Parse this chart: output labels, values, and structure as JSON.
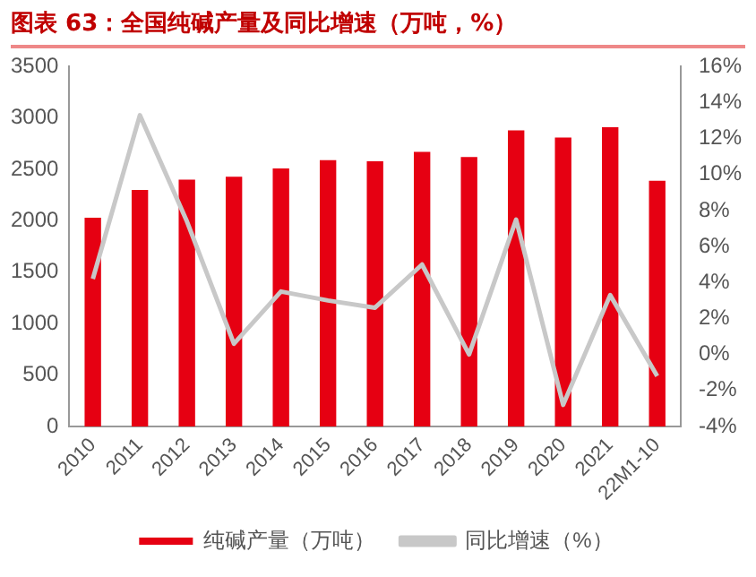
{
  "chart_data": {
    "type": "bar",
    "title": "图表 63：全国纯碱产量及同比增速（万吨，%）",
    "categories": [
      "2010",
      "2011",
      "2012",
      "2013",
      "2014",
      "2015",
      "2016",
      "2017",
      "2018",
      "2019",
      "2020",
      "2021",
      "22M1-10"
    ],
    "series": [
      {
        "name": "纯碱产量（万吨）",
        "color": "#e60012",
        "values": [
          2030,
          2300,
          2400,
          2430,
          2510,
          2590,
          2580,
          2670,
          2620,
          2880,
          2810,
          2910,
          2390
        ]
      },
      {
        "name": "同比增速（%）",
        "type": "line",
        "axis": "y2",
        "color": "#c8c8c8",
        "values": [
          4.2,
          13.3,
          7.4,
          0.6,
          3.5,
          3.0,
          2.6,
          5.0,
          0.0,
          7.5,
          -2.8,
          3.3,
          -1.2
        ]
      }
    ],
    "ylim": [
      0,
      3500
    ],
    "yticks": [
      0,
      500,
      1000,
      1500,
      2000,
      2500,
      3000,
      3500
    ],
    "y2lim": [
      -4,
      16
    ],
    "y2ticks": [
      {
        "value": -4,
        "label": "-4%"
      },
      {
        "value": -2,
        "label": "-2%"
      },
      {
        "value": 0,
        "label": "0%"
      },
      {
        "value": 2,
        "label": "2%"
      },
      {
        "value": 4,
        "label": "4%"
      },
      {
        "value": 6,
        "label": "6%"
      },
      {
        "value": 8,
        "label": "8%"
      },
      {
        "value": 10,
        "label": "10%"
      },
      {
        "value": 12,
        "label": "12%"
      },
      {
        "value": 14,
        "label": "14%"
      },
      {
        "value": 16,
        "label": "16%"
      }
    ],
    "grid": false,
    "legend": "bottom",
    "marker": "none"
  }
}
